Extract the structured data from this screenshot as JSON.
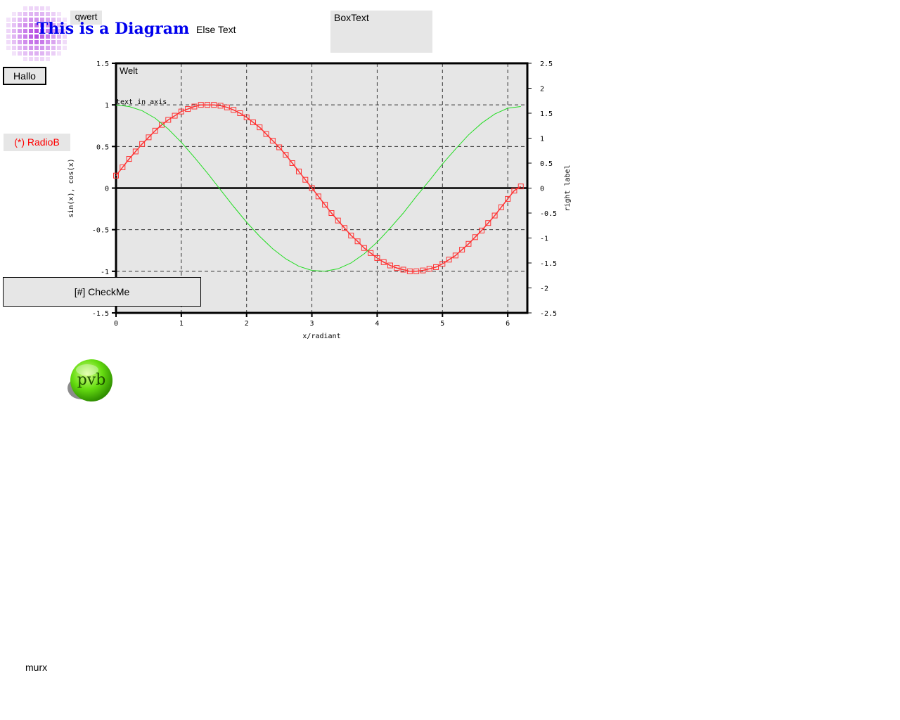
{
  "header": {
    "qwert_label": "qwert",
    "title": "This is a Diagram",
    "else_text": "Else Text",
    "box_text": "BoxText"
  },
  "controls": {
    "hallo_button": "Hallo",
    "radio_label": "(*) RadioB",
    "check_label": "[#] CheckMe",
    "footer_text": "murx"
  },
  "logo": {
    "text": "pvb"
  },
  "colors": {
    "title": "#0000ee",
    "radio": "#ff0000",
    "plot_background": "#e6e6e6",
    "sin_series": "#ff3333",
    "cos_series": "#22dd22",
    "grid": "#333333"
  },
  "chart_data": {
    "type": "line",
    "xlabel": "x/radiant",
    "ylabel": "sin(x), cos(x)",
    "ylabel_right": "right label",
    "plot_title": "Welt",
    "annotation": "text in axis",
    "xlim": [
      0,
      6.3
    ],
    "ylim": [
      -1.5,
      1.5
    ],
    "ylim_right": [
      -2.5,
      2.5
    ],
    "x_ticks": [
      "0",
      "1",
      "2",
      "3",
      "4",
      "5",
      "6"
    ],
    "y_ticks": [
      "1.5",
      "1",
      "0.5",
      "0",
      "-0.5",
      "-1",
      "-1.5"
    ],
    "y_right_ticks": [
      "2.5",
      "2",
      "1.5",
      "1",
      "0.5",
      "0",
      "-0.5",
      "-1",
      "-1.5",
      "-2",
      "-2.5"
    ],
    "grid": true,
    "series": [
      {
        "marker": "square",
        "color": "#ff3333",
        "x": [
          0,
          0.1,
          0.2,
          0.3,
          0.4,
          0.5,
          0.6,
          0.7,
          0.8,
          0.9,
          1.0,
          1.1,
          1.2,
          1.3,
          1.4,
          1.5,
          1.6,
          1.7,
          1.8,
          1.9,
          2.0,
          2.1,
          2.2,
          2.3,
          2.4,
          2.5,
          2.6,
          2.7,
          2.8,
          2.9,
          3.0,
          3.1,
          3.2,
          3.3,
          3.4,
          3.5,
          3.6,
          3.7,
          3.8,
          3.9,
          4.0,
          4.1,
          4.2,
          4.3,
          4.4,
          4.5,
          4.6,
          4.7,
          4.8,
          4.9,
          5.0,
          5.1,
          5.2,
          5.3,
          5.4,
          5.5,
          5.6,
          5.7,
          5.8,
          5.9,
          6.0,
          6.1,
          6.2
        ],
        "y": [
          0.15,
          0.25,
          0.35,
          0.44,
          0.53,
          0.61,
          0.69,
          0.76,
          0.82,
          0.87,
          0.92,
          0.95,
          0.98,
          1.0,
          1.0,
          1.0,
          0.99,
          0.97,
          0.94,
          0.9,
          0.85,
          0.79,
          0.73,
          0.65,
          0.57,
          0.49,
          0.4,
          0.3,
          0.2,
          0.1,
          0.0,
          -0.1,
          -0.2,
          -0.3,
          -0.39,
          -0.48,
          -0.57,
          -0.64,
          -0.72,
          -0.78,
          -0.84,
          -0.89,
          -0.93,
          -0.96,
          -0.98,
          -1.0,
          -1.0,
          -0.99,
          -0.97,
          -0.95,
          -0.91,
          -0.86,
          -0.81,
          -0.74,
          -0.67,
          -0.59,
          -0.51,
          -0.42,
          -0.33,
          -0.23,
          -0.13,
          -0.03,
          0.02
        ]
      },
      {
        "marker": "none",
        "color": "#22dd22",
        "x": [
          0,
          0.2,
          0.4,
          0.6,
          0.8,
          1.0,
          1.2,
          1.4,
          1.6,
          1.8,
          2.0,
          2.2,
          2.4,
          2.6,
          2.8,
          3.0,
          3.2,
          3.4,
          3.6,
          3.8,
          4.0,
          4.2,
          4.4,
          4.6,
          4.8,
          5.0,
          5.2,
          5.4,
          5.6,
          5.8,
          6.0,
          6.2
        ],
        "y": [
          1.0,
          0.98,
          0.93,
          0.84,
          0.71,
          0.55,
          0.37,
          0.18,
          -0.02,
          -0.22,
          -0.41,
          -0.58,
          -0.73,
          -0.85,
          -0.94,
          -0.99,
          -1.0,
          -0.97,
          -0.9,
          -0.79,
          -0.65,
          -0.48,
          -0.3,
          -0.1,
          0.09,
          0.29,
          0.47,
          0.64,
          0.78,
          0.89,
          0.96,
          0.98
        ]
      }
    ]
  }
}
